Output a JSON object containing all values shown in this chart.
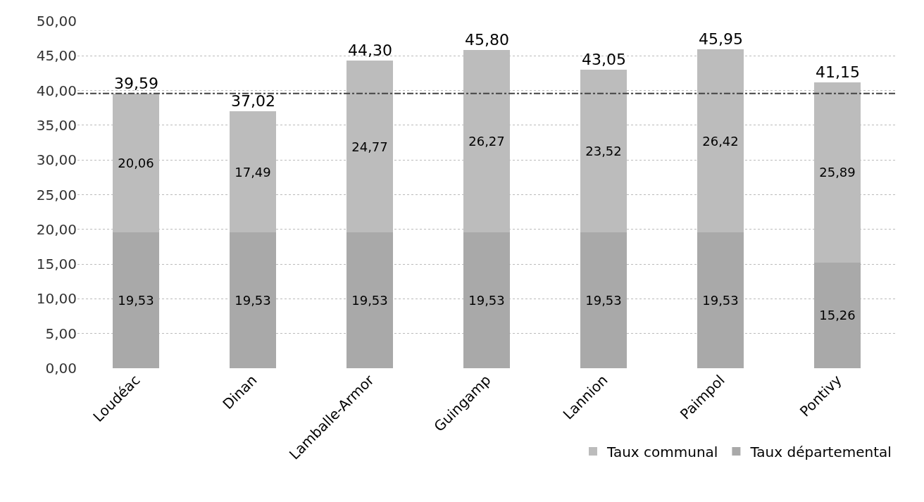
{
  "chart_data": {
    "type": "bar",
    "stacked": true,
    "categories": [
      "Loudéac",
      "Dinan",
      "Lamballe-Armor",
      "Guingamp",
      "Lannion",
      "Paimpol",
      "Pontivy"
    ],
    "series": [
      {
        "name": "Taux départemental",
        "color": "#a9a9a9",
        "values": [
          19.53,
          19.53,
          19.53,
          19.53,
          19.53,
          19.53,
          15.26
        ],
        "value_labels": [
          "19,53",
          "19,53",
          "19,53",
          "19,53",
          "19,53",
          "19,53",
          "15,26"
        ]
      },
      {
        "name": "Taux communal",
        "color": "#bcbcbc",
        "values": [
          20.06,
          17.49,
          24.77,
          26.27,
          23.52,
          26.42,
          25.89
        ],
        "value_labels": [
          "20,06",
          "17,49",
          "24,77",
          "26,27",
          "23,52",
          "26,42",
          "25,89"
        ]
      }
    ],
    "totals": [
      "39,59",
      "37,02",
      "44,30",
      "45,80",
      "43,05",
      "45,95",
      "41,15"
    ],
    "ylim": [
      0,
      50
    ],
    "yticks": [
      {
        "value": 0,
        "label": "0,00"
      },
      {
        "value": 5,
        "label": "5,00"
      },
      {
        "value": 10,
        "label": "10,00"
      },
      {
        "value": 15,
        "label": "15,00"
      },
      {
        "value": 20,
        "label": "20,00"
      },
      {
        "value": 25,
        "label": "25,00"
      },
      {
        "value": 30,
        "label": "30,00"
      },
      {
        "value": 35,
        "label": "35,00"
      },
      {
        "value": 40,
        "label": "40,00"
      },
      {
        "value": 45,
        "label": "45,00"
      },
      {
        "value": 50,
        "label": "50,00"
      }
    ],
    "ref_lines": [
      {
        "axis": "y",
        "value": 39.59,
        "label": null,
        "color": "#444444",
        "line_style": "dashdot"
      }
    ],
    "grid": "y",
    "legend": "bottom right"
  }
}
